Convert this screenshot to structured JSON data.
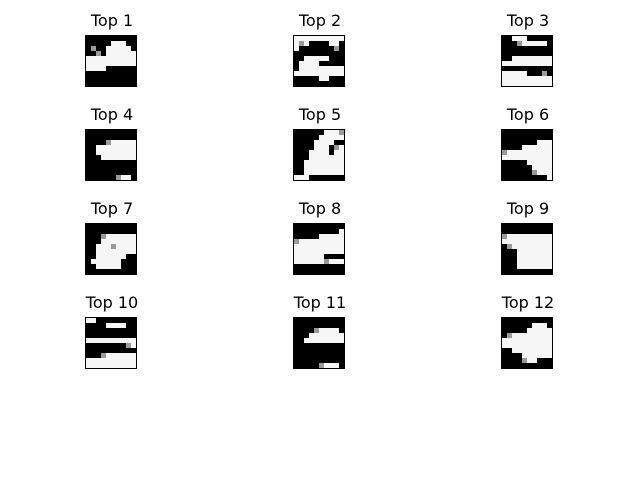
{
  "panels": [
    {
      "title": "Top 1",
      "pixels": [
        "0000000000",
        "0000011100",
        "0000111110",
        "0000111111",
        "1111111111",
        "1111111111",
        "1111000000",
        "0000000000",
        "0000000000",
        "0000000000"
      ],
      "mid": [
        [
          2,
          1
        ],
        [
          3,
          2
        ]
      ]
    },
    {
      "title": "Top 2",
      "pixels": [
        "1111111111",
        "1110000110",
        "1000000000",
        "0000000000",
        "0011111000",
        "0111100000",
        "0111111111",
        "1111111111",
        "0000011000",
        "0000000000"
      ],
      "mid": [
        [
          1,
          1
        ],
        [
          2,
          8
        ]
      ]
    },
    {
      "title": "Top 3",
      "pixels": [
        "0011100000",
        "0000111110",
        "0000000000",
        "0000000000",
        "0011111111",
        "1111111111",
        "0000000000",
        "1111100000",
        "1111111111",
        "1111111111"
      ],
      "mid": [
        [
          1,
          3
        ],
        [
          7,
          8
        ]
      ]
    },
    {
      "title": "Top 4",
      "pixels": [
        "0000000000",
        "0000000000",
        "0000011111",
        "0011111111",
        "0011111111",
        "0001111111",
        "0000000000",
        "0000000000",
        "0000000000",
        "0000001110"
      ],
      "mid": [
        [
          2,
          4
        ],
        [
          9,
          6
        ]
      ]
    },
    {
      "title": "Top 5",
      "pixels": [
        "0000001111",
        "0000011111",
        "0000111100",
        "0000111001",
        "0001111011",
        "0001111111",
        "0011111111",
        "0011111111",
        "0011111111",
        "1110000000"
      ],
      "mid": [
        [
          3,
          8
        ],
        [
          0,
          9
        ]
      ]
    },
    {
      "title": "Top 6",
      "pixels": [
        "0000000000",
        "0000000000",
        "0000000111",
        "0000111111",
        "1111111111",
        "1111111111",
        "0000011111",
        "0000001111",
        "0000000111",
        "0000000001"
      ],
      "mid": [
        [
          4,
          0
        ],
        [
          8,
          6
        ]
      ]
    },
    {
      "title": "Top 7",
      "pixels": [
        "0000000000",
        "0000000000",
        "0001111111",
        "0001111111",
        "0011111111",
        "0011111111",
        "0011111100",
        "0111111000",
        "0011111000",
        "0000000000"
      ],
      "mid": [
        [
          2,
          3
        ],
        [
          4,
          5
        ]
      ]
    },
    {
      "title": "Top 8",
      "pixels": [
        "0000000000",
        "0000000001",
        "0000011111",
        "1111111111",
        "1111111111",
        "1111111111",
        "1111110000",
        "1111110111",
        "0000000000",
        "0000000000"
      ],
      "mid": [
        [
          3,
          0
        ],
        [
          7,
          6
        ]
      ]
    },
    {
      "title": "Top 9",
      "pixels": [
        "0000000000",
        "0000000000",
        "1111111111",
        "1111111111",
        "0111111111",
        "0001111111",
        "0001111111",
        "0001111111",
        "0001111111",
        "0000000000"
      ],
      "mid": [
        [
          2,
          0
        ],
        [
          4,
          1
        ]
      ]
    },
    {
      "title": "Top 10",
      "pixels": [
        "1100000000",
        "0000111100",
        "0000000000",
        "0000000000",
        "1111111111",
        "0000000011",
        "0000000000",
        "0001111111",
        "1111111111",
        "1111111111"
      ],
      "mid": [
        [
          5,
          8
        ],
        [
          7,
          3
        ]
      ]
    },
    {
      "title": "Top 11",
      "pixels": [
        "0000000000",
        "0000000000",
        "0000111110",
        "0001111111",
        "0011111111",
        "0000000000",
        "0000000000",
        "0000000000",
        "0000000000",
        "0000011110"
      ],
      "mid": [
        [
          2,
          4
        ],
        [
          9,
          5
        ]
      ]
    },
    {
      "title": "Top 12",
      "pixels": [
        "0000000000",
        "0000001110",
        "0000011111",
        "0111111111",
        "1111111111",
        "1111111111",
        "0011111111",
        "0000111111",
        "0000111000",
        "0000000000"
      ],
      "mid": [
        [
          3,
          1
        ],
        [
          8,
          4
        ]
      ]
    }
  ]
}
